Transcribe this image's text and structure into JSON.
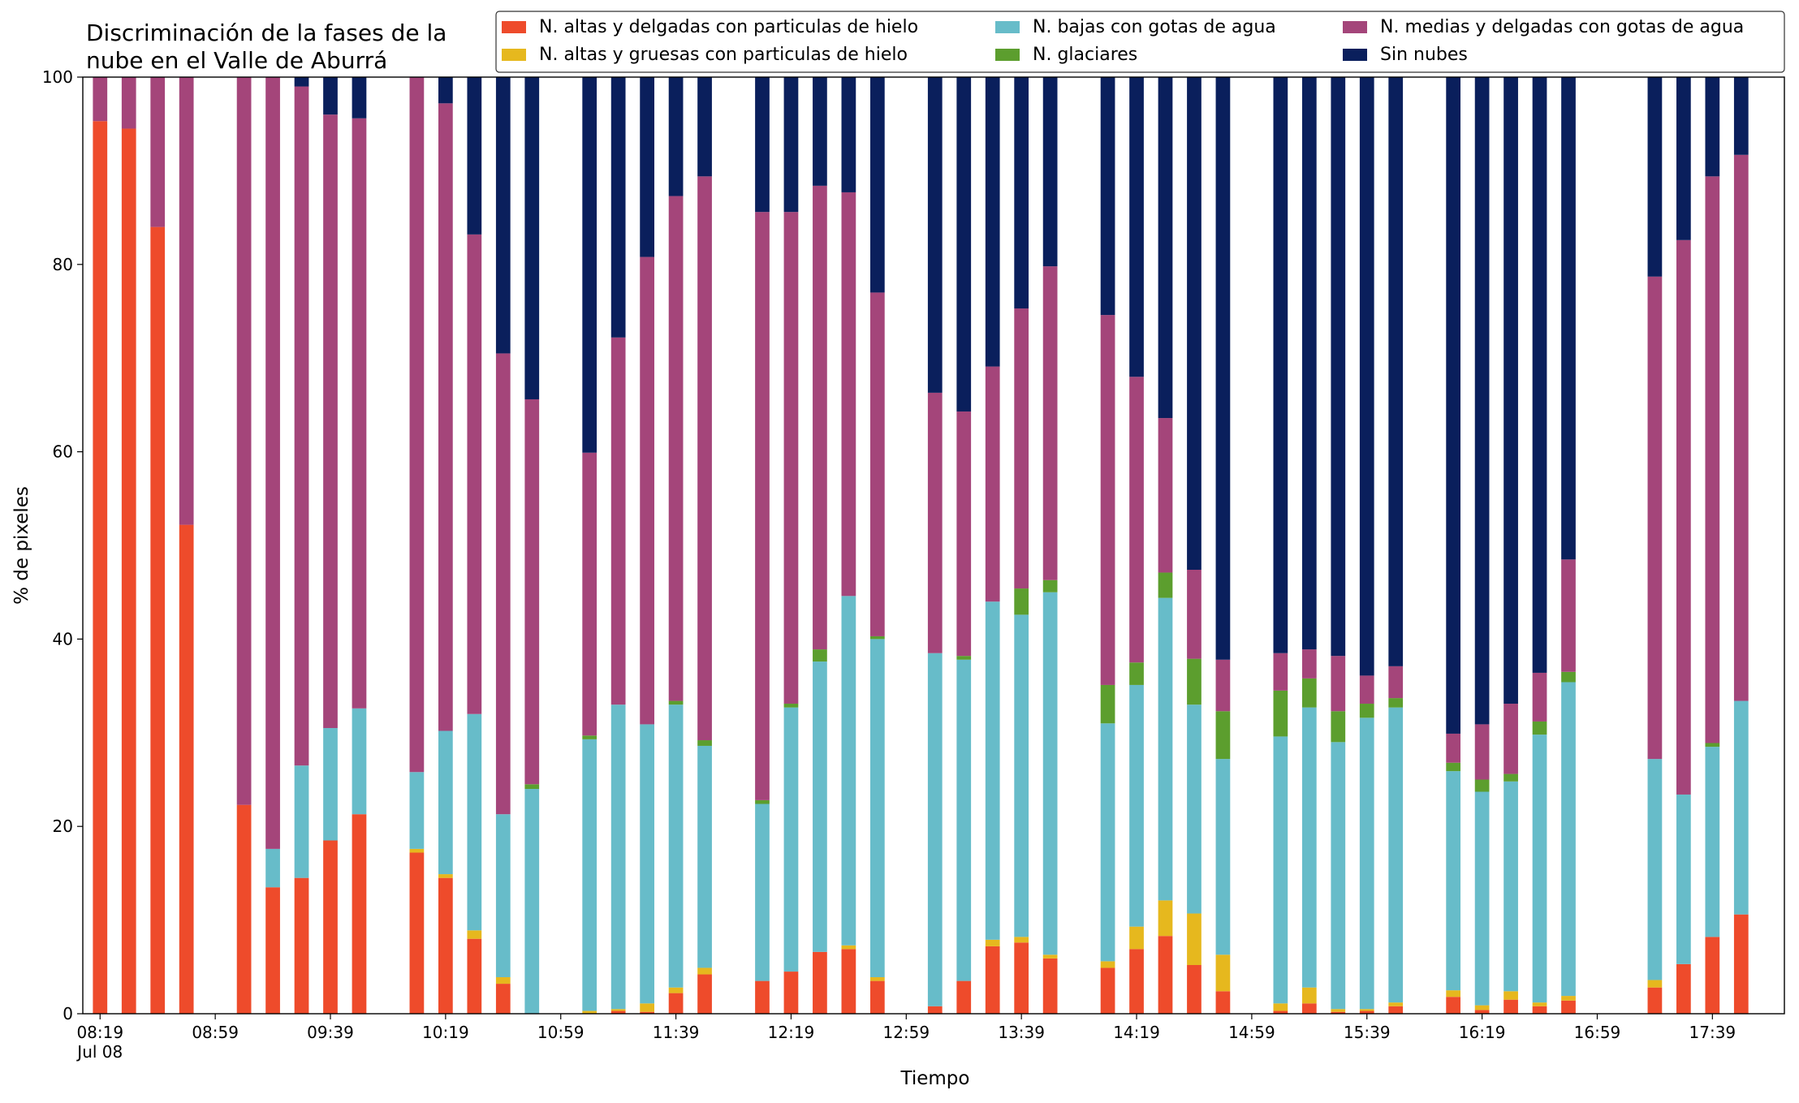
{
  "chart_data": {
    "type": "stacked_bar",
    "title": "Discriminación de la fases de la\nnube en el Valle de Aburrá",
    "x_label": "Tiempo",
    "y_label": "% de pixeles",
    "x": [
      "08:19",
      "08:29",
      "08:39",
      "08:49",
      "09:09",
      "09:19",
      "09:29",
      "09:39",
      "09:49",
      "10:09",
      "10:19",
      "10:29",
      "10:39",
      "10:49",
      "11:09",
      "11:19",
      "11:29",
      "11:39",
      "11:49",
      "12:09",
      "12:19",
      "12:29",
      "12:39",
      "12:49",
      "13:09",
      "13:19",
      "13:29",
      "13:39",
      "13:49",
      "14:09",
      "14:19",
      "14:29",
      "14:39",
      "14:49",
      "15:09",
      "15:19",
      "15:29",
      "15:39",
      "15:49",
      "16:09",
      "16:19",
      "16:29",
      "16:39",
      "16:49",
      "17:19",
      "17:29",
      "17:39",
      "17:49"
    ],
    "xlim": [
      "08:13",
      "18:04"
    ],
    "xticks": [
      {
        "value": "08:19",
        "label": "08:19\nJul 08"
      },
      "08:59",
      "09:39",
      "10:19",
      "10:59",
      "11:39",
      "12:19",
      "12:59",
      "13:39",
      "14:19",
      "14:59",
      "15:39",
      "16:19",
      "16:59",
      "17:39"
    ],
    "ylim": [
      0,
      100
    ],
    "yticks": [
      0,
      20,
      40,
      60,
      80,
      100
    ],
    "legend": "upper right",
    "series": [
      {
        "name": "N. altas y delgadas con particulas de hielo",
        "color": "#ee4b2b",
        "values": [
          95.3,
          94.5,
          84,
          52.2,
          22.3,
          13.5,
          14.5,
          18.5,
          21.3,
          17.2,
          14.5,
          8,
          3.2,
          0,
          0,
          0.3,
          0.2,
          2.2,
          4.2,
          3.5,
          4.5,
          6.6,
          6.9,
          3.5,
          0.8,
          3.5,
          7.2,
          7.6,
          5.9,
          4.9,
          6.9,
          8.3,
          5.2,
          2.4,
          0.3,
          1.1,
          0.2,
          0.3,
          0.8,
          1.8,
          0.4,
          1.5,
          0.8,
          1.4,
          2.8,
          5.3,
          8.2,
          10.6
        ]
      },
      {
        "name": "N. altas y gruesas con particulas de hielo",
        "color": "#e6b81e",
        "values": [
          0,
          0,
          0,
          0,
          0,
          0,
          0,
          0,
          0,
          0.4,
          0.4,
          0.9,
          0.7,
          0,
          0.3,
          0.2,
          0.9,
          0.6,
          0.7,
          0,
          0,
          0,
          0.4,
          0.4,
          0,
          0,
          0.7,
          0.6,
          0.4,
          0.7,
          2.4,
          3.8,
          5.5,
          3.9,
          0.8,
          1.7,
          0.3,
          0.2,
          0.4,
          0.7,
          0.5,
          0.9,
          0.4,
          0.5,
          0.8,
          0,
          0,
          0
        ]
      },
      {
        "name": "N. bajas con gotas de agua",
        "color": "#67bcc9",
        "values": [
          0,
          0,
          0,
          0,
          0,
          4.1,
          12,
          12,
          11.3,
          8.2,
          15.3,
          23.1,
          17.4,
          24,
          29,
          32.5,
          29.8,
          30.2,
          23.7,
          18.9,
          28.2,
          31,
          37.3,
          36.1,
          37.7,
          34.3,
          36.1,
          34.4,
          38.7,
          25.4,
          25.8,
          32.3,
          22.3,
          20.9,
          28.5,
          29.9,
          28.5,
          31.1,
          31.5,
          23.4,
          22.8,
          22.4,
          28.6,
          33.5,
          23.6,
          18.1,
          20.3,
          22.8
        ]
      },
      {
        "name": "N. glaciares",
        "color": "#5c9e2e",
        "values": [
          0,
          0,
          0,
          0,
          0,
          0,
          0,
          0,
          0,
          0,
          0,
          0,
          0,
          0.5,
          0.4,
          0,
          0,
          0.4,
          0.6,
          0.4,
          0.4,
          1.3,
          0,
          0.3,
          0,
          0.4,
          0,
          2.8,
          1.3,
          4.1,
          2.4,
          2.7,
          4.9,
          5.1,
          4.9,
          3.1,
          3.3,
          1.5,
          1,
          0.9,
          1.3,
          0.8,
          1.4,
          1.1,
          0,
          0,
          0.4,
          0
        ]
      },
      {
        "name": "N. medias y delgadas con gotas de agua",
        "color": "#a4457a",
        "values": [
          4.7,
          5.5,
          16,
          47.8,
          77.7,
          82.4,
          72.5,
          65.5,
          63,
          74.2,
          67,
          51.2,
          49.2,
          41.1,
          30.2,
          39.2,
          49.9,
          53.9,
          60.2,
          62.8,
          52.5,
          49.5,
          43.1,
          36.7,
          27.8,
          26.1,
          25.1,
          29.9,
          33.5,
          39.5,
          30.5,
          16.5,
          9.5,
          5.5,
          4,
          3.1,
          5.9,
          3,
          3.4,
          3.1,
          5.9,
          7.5,
          5.2,
          12,
          51.5,
          59.2,
          60.5,
          58.3
        ]
      },
      {
        "name": "Sin nubes",
        "color": "#0a1f5c",
        "values": [
          0,
          0,
          0,
          0,
          0,
          0,
          1,
          4,
          4.4,
          0,
          2.8,
          16.8,
          29.5,
          34.4,
          40.1,
          27.8,
          19.2,
          12.7,
          10.6,
          14.4,
          14.4,
          11.6,
          12.3,
          23,
          33.7,
          35.7,
          30.9,
          24.7,
          20.2,
          25.4,
          32,
          36.4,
          52.6,
          62.2,
          61.5,
          61.1,
          61.8,
          63.9,
          62.9,
          70.1,
          69.1,
          66.9,
          63.6,
          51.5,
          21.3,
          17.4,
          10.6,
          8.3
        ]
      }
    ]
  }
}
